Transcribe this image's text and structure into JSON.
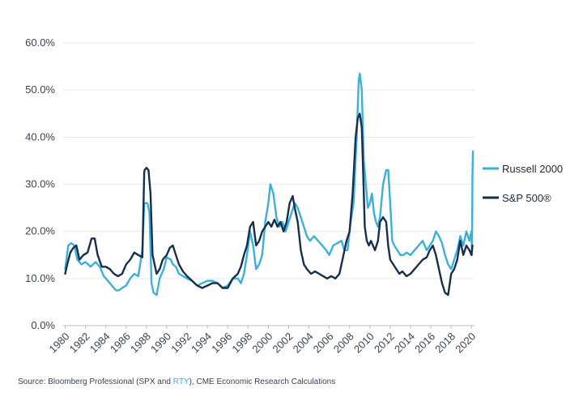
{
  "chart_data": {
    "type": "line",
    "title": "",
    "xlabel": "",
    "ylabel": "",
    "xlim": [
      1979.8,
      2020.3
    ],
    "ylim": [
      0,
      60
    ],
    "x_ticks": [
      "1980",
      "1982",
      "1984",
      "1986",
      "1988",
      "1990",
      "1992",
      "1994",
      "1996",
      "1998",
      "2000",
      "2002",
      "2004",
      "2006",
      "2008",
      "2010",
      "2012",
      "2014",
      "2016",
      "2018",
      "2020"
    ],
    "y_ticks": [
      "0.0%",
      "10.0%",
      "20.0%",
      "30.0%",
      "40.0%",
      "50.0%",
      "60.0%"
    ],
    "grid": true,
    "legend_position": "right",
    "series": [
      {
        "name": "Russell 2000",
        "color": "#3bb0d9",
        "x": [
          1980.0,
          1980.3,
          1980.6,
          1980.9,
          1981.2,
          1981.6,
          1982.0,
          1982.5,
          1983.0,
          1983.4,
          1983.8,
          1984.2,
          1984.6,
          1985.0,
          1985.3,
          1985.6,
          1986.0,
          1986.4,
          1986.8,
          1987.2,
          1987.6,
          1987.78,
          1987.83,
          1988.0,
          1988.1,
          1988.3,
          1988.5,
          1988.7,
          1989.0,
          1989.3,
          1989.7,
          1990.0,
          1990.4,
          1990.6,
          1990.9,
          1991.2,
          1991.6,
          1992.0,
          1992.5,
          1993.0,
          1993.5,
          1994.0,
          1994.5,
          1995.0,
          1995.5,
          1996.0,
          1996.5,
          1997.0,
          1997.3,
          1997.6,
          1997.9,
          1998.2,
          1998.5,
          1998.8,
          1999.1,
          1999.4,
          1999.7,
          2000.0,
          2000.2,
          2000.5,
          2000.8,
          2001.1,
          2001.4,
          2001.7,
          2002.0,
          2002.3,
          2002.6,
          2002.9,
          2003.2,
          2003.5,
          2003.8,
          2004.1,
          2004.5,
          2004.9,
          2005.3,
          2005.7,
          2006.0,
          2006.4,
          2006.8,
          2007.2,
          2007.5,
          2007.8,
          2008.1,
          2008.4,
          2008.7,
          2008.9,
          2009.0,
          2009.2,
          2009.4,
          2009.6,
          2009.8,
          2010.0,
          2010.2,
          2010.4,
          2010.6,
          2010.8,
          2011.0,
          2011.3,
          2011.6,
          2011.8,
          2012.0,
          2012.2,
          2012.4,
          2012.7,
          2013.0,
          2013.3,
          2013.6,
          2014.0,
          2014.4,
          2014.8,
          2015.2,
          2015.6,
          2015.9,
          2016.2,
          2016.5,
          2016.8,
          2017.1,
          2017.4,
          2017.7,
          2018.0,
          2018.3,
          2018.6,
          2018.9,
          2019.2,
          2019.5,
          2019.8,
          2020.0,
          2020.05,
          2020.1,
          2020.15
        ],
        "values": [
          12,
          17,
          17.5,
          17,
          14,
          13,
          13.5,
          12.5,
          13.5,
          12.5,
          10.5,
          9.5,
          8.5,
          7.5,
          7.5,
          8,
          8.5,
          10,
          11,
          10.5,
          16,
          26,
          26,
          26,
          26,
          24,
          9,
          7,
          6.5,
          10,
          12,
          14.5,
          14,
          13,
          12.5,
          11,
          10.5,
          10,
          9.5,
          8.5,
          9,
          9.5,
          9.5,
          9,
          8,
          8.5,
          10,
          10,
          9,
          11,
          15,
          20,
          17,
          12,
          13,
          15,
          22,
          26,
          30,
          28,
          23,
          21,
          22,
          20,
          22,
          24,
          26,
          25,
          23,
          21,
          19,
          18,
          19,
          18,
          17,
          16,
          15,
          17,
          17.5,
          18,
          16,
          16,
          22,
          26,
          40,
          52,
          53.5,
          50,
          35,
          30,
          25,
          26,
          28,
          24,
          22,
          21,
          23,
          30,
          33,
          33,
          26,
          18,
          17,
          16,
          15,
          15,
          15.5,
          15,
          16,
          17,
          18,
          16,
          17,
          18,
          20,
          19,
          17.5,
          15,
          13,
          12,
          14,
          16,
          19,
          17,
          20,
          18,
          20,
          15,
          32,
          37
        ]
      },
      {
        "name": "S&P 500®",
        "color": "#14304e",
        "x": [
          1980.0,
          1980.2,
          1980.5,
          1980.8,
          1981.1,
          1981.4,
          1981.8,
          1982.2,
          1982.6,
          1982.9,
          1983.2,
          1983.6,
          1984.0,
          1984.4,
          1984.8,
          1985.2,
          1985.6,
          1986.0,
          1986.4,
          1986.8,
          1987.2,
          1987.6,
          1987.78,
          1987.82,
          1988.0,
          1988.2,
          1988.4,
          1988.6,
          1988.8,
          1989.0,
          1989.3,
          1989.6,
          1990.0,
          1990.3,
          1990.6,
          1990.9,
          1991.2,
          1991.6,
          1992.0,
          1992.5,
          1993.0,
          1993.5,
          1994.0,
          1994.5,
          1995.0,
          1995.5,
          1996.0,
          1996.5,
          1997.0,
          1997.3,
          1997.6,
          1997.9,
          1998.2,
          1998.5,
          1998.8,
          1999.1,
          1999.4,
          1999.7,
          2000.0,
          2000.3,
          2000.6,
          2000.9,
          2001.2,
          2001.5,
          2001.8,
          2002.1,
          2002.4,
          2002.6,
          2002.9,
          2003.2,
          2003.5,
          2003.8,
          2004.2,
          2004.6,
          2005.0,
          2005.4,
          2005.8,
          2006.2,
          2006.6,
          2007.0,
          2007.4,
          2007.7,
          2008.0,
          2008.3,
          2008.6,
          2008.8,
          2009.0,
          2009.2,
          2009.4,
          2009.5,
          2009.7,
          2009.9,
          2010.1,
          2010.3,
          2010.5,
          2010.8,
          2011.0,
          2011.3,
          2011.6,
          2011.8,
          2012.0,
          2012.3,
          2012.6,
          2012.9,
          2013.2,
          2013.6,
          2014.0,
          2014.4,
          2014.8,
          2015.2,
          2015.6,
          2015.9,
          2016.2,
          2016.5,
          2016.8,
          2017.1,
          2017.4,
          2017.7,
          2018.0,
          2018.3,
          2018.6,
          2018.9,
          2019.2,
          2019.5,
          2019.8,
          2020.0,
          2020.05,
          2020.1
        ],
        "values": [
          11,
          13,
          15.5,
          16.5,
          17,
          14,
          15,
          15.5,
          18.5,
          18.5,
          15,
          12.5,
          12.5,
          12,
          11,
          10.5,
          11,
          13,
          14,
          15.5,
          15,
          14.5,
          32.5,
          33,
          33.5,
          33,
          28,
          15,
          13,
          11,
          12,
          14,
          15,
          16.5,
          17,
          15,
          13,
          11.5,
          10.5,
          9.5,
          8.5,
          8,
          8.5,
          9,
          9,
          8,
          8,
          10,
          11,
          12.5,
          15,
          17,
          21,
          22,
          17,
          18,
          20,
          21,
          22,
          21,
          22.5,
          21,
          22,
          20,
          22,
          26,
          27.5,
          25,
          22,
          16,
          13,
          12,
          11,
          11.5,
          11,
          10.5,
          10,
          10.5,
          10,
          11,
          15,
          18,
          20,
          28,
          40,
          44,
          45,
          42,
          28,
          21,
          18,
          17,
          18,
          17,
          16,
          18,
          22,
          23,
          22,
          17,
          14,
          13,
          12,
          11,
          11.5,
          10.5,
          11,
          12,
          13,
          14,
          14.5,
          16,
          17,
          15,
          12,
          9,
          7,
          6.5,
          11,
          12,
          14,
          18,
          15,
          17,
          16,
          15,
          16,
          17
        ]
      }
    ],
    "source": {
      "prefix": "Source: Bloomberg Professional (SPX and ",
      "highlight": "RTY",
      "suffix": "), CME Economic Research Calculations"
    }
  }
}
